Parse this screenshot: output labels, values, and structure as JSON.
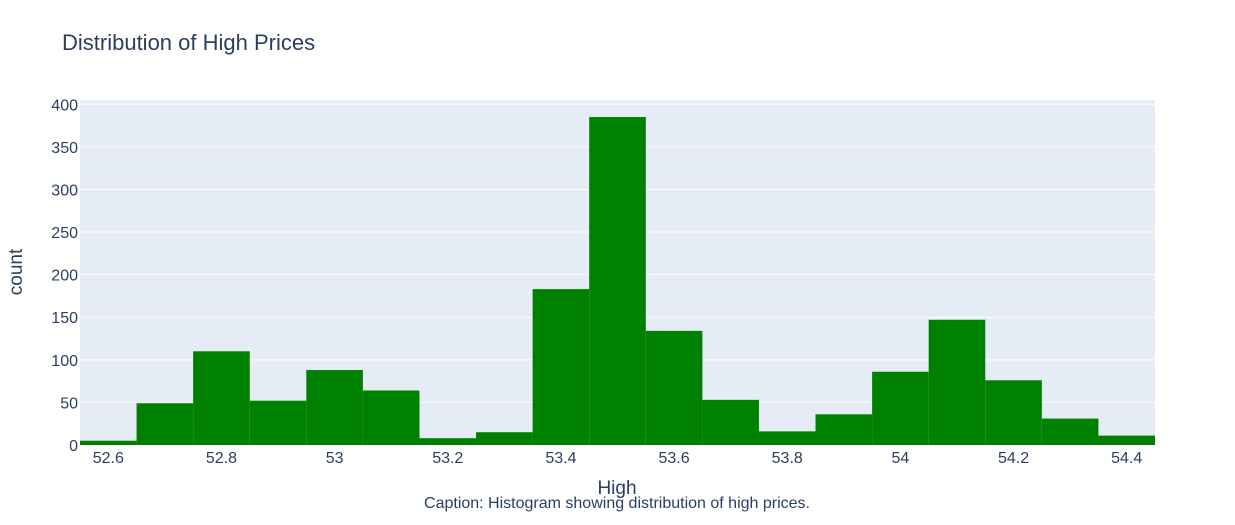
{
  "chart_data": {
    "type": "bar",
    "title": "Distribution of High Prices",
    "xlabel": "High",
    "ylabel": "count",
    "caption": "Caption: Histogram showing distribution of high prices.",
    "bin_width": 0.1,
    "bin_starts": [
      52.55,
      52.65,
      52.75,
      52.85,
      52.95,
      53.05,
      53.15,
      53.25,
      53.35,
      53.45,
      53.55,
      53.65,
      53.75,
      53.85,
      53.95,
      54.05,
      54.15,
      54.25,
      54.35
    ],
    "values": [
      5,
      49,
      110,
      52,
      88,
      64,
      8,
      15,
      183,
      385,
      134,
      53,
      16,
      36,
      86,
      147,
      76,
      31,
      11
    ],
    "xlim": [
      52.55,
      54.45
    ],
    "ylim": [
      0,
      405
    ],
    "x_ticks": [
      52.6,
      52.8,
      53,
      53.2,
      53.4,
      53.6,
      53.8,
      54,
      54.2,
      54.4
    ],
    "x_tick_labels": [
      "52.6",
      "52.8",
      "53",
      "53.2",
      "53.4",
      "53.6",
      "53.8",
      "54",
      "54.2",
      "54.4"
    ],
    "y_ticks": [
      0,
      50,
      100,
      150,
      200,
      250,
      300,
      350,
      400
    ],
    "y_tick_labels": [
      "0",
      "50",
      "100",
      "150",
      "200",
      "250",
      "300",
      "350",
      "400"
    ],
    "grid": true,
    "colors": {
      "bar": "#008000",
      "plot_bg": "#e5ecf6",
      "grid": "#ffffff",
      "text": "#2a3f5f"
    }
  }
}
